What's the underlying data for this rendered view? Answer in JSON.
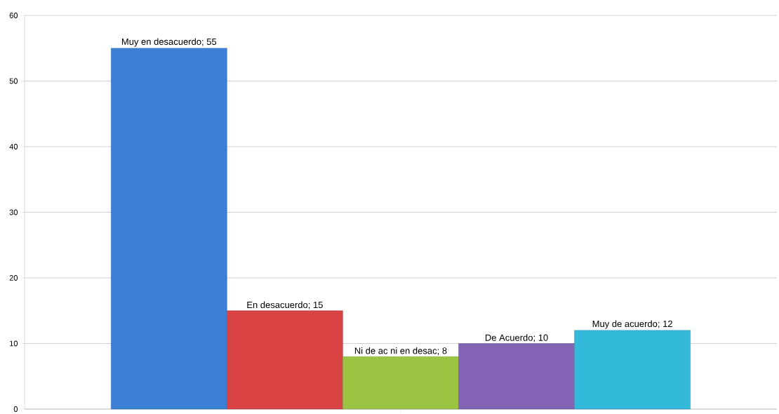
{
  "chart_data": {
    "type": "bar",
    "categories": [
      null
    ],
    "series": [
      {
        "color": "#3b7fd6",
        "values": [
          55
        ],
        "value_labels": [
          "Muy en desacuerdo; 55"
        ]
      },
      {
        "color": "#d94343",
        "values": [
          15
        ],
        "value_labels": [
          "En desacuerdo; 15"
        ]
      },
      {
        "color": "#9bc443",
        "values": [
          8
        ],
        "value_labels": [
          "Ni de ac ni en desac; 8"
        ]
      },
      {
        "color": "#8363b3",
        "values": [
          10
        ],
        "value_labels": [
          "De Acuerdo; 10"
        ]
      },
      {
        "color": "#33b9da",
        "values": [
          12
        ],
        "value_labels": [
          "Muy de acuerdo; 12"
        ]
      }
    ],
    "ylim": [
      0,
      60
    ],
    "yticks": [
      0,
      10,
      20,
      30,
      40,
      50,
      60
    ],
    "grid": "y"
  }
}
